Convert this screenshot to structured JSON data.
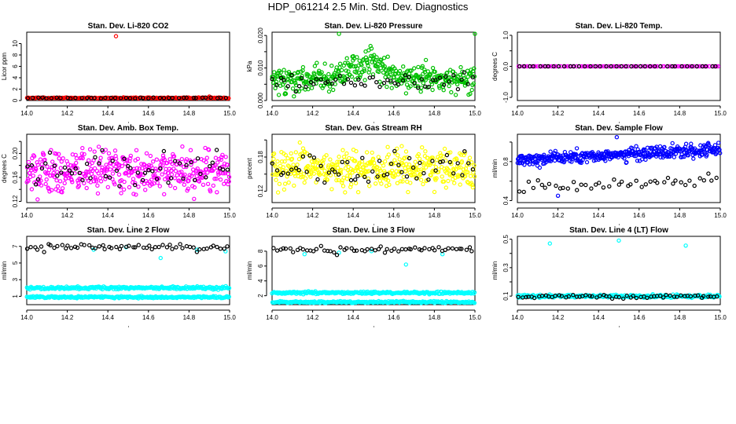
{
  "figure_title": "HDP_061214  2.5 Min. Std. Dev. Diagnostics",
  "chart_data": [
    {
      "type": "scatter",
      "title": "Stan. Dev. Li-820 CO2",
      "ylabel": "Licor ppm",
      "xlim": [
        14.0,
        15.0
      ],
      "ylim": [
        0,
        12
      ],
      "xticks": [
        "14.0",
        "14.2",
        "14.4",
        "14.6",
        "14.8",
        "15.0"
      ],
      "yticks": [
        0,
        2,
        4,
        6,
        8,
        10
      ],
      "ytick_labels": [
        "0",
        "2",
        "4",
        "6",
        "8",
        "10"
      ],
      "series": [
        {
          "name": "primary",
          "color": "#ff0000",
          "gen": {
            "n": 200,
            "base": 0.45,
            "amp": 0.1,
            "trend": 0,
            "seed": 1
          },
          "outliers": [
            [
              14.44,
              11.3
            ],
            [
              14.9,
              0.7
            ]
          ]
        },
        {
          "name": "secondary",
          "color": "#000000",
          "gen": {
            "n": 42,
            "base": 0.45,
            "amp": 0.08,
            "trend": 0,
            "seed": 2
          }
        }
      ]
    },
    {
      "type": "scatter",
      "title": "Stan. Dev. Li-820 Pressure",
      "ylabel": "kPa",
      "xlim": [
        14.0,
        15.0
      ],
      "ylim": [
        0,
        0.021
      ],
      "xticks": [
        "14.0",
        "14.2",
        "14.4",
        "14.6",
        "14.8",
        "15.0"
      ],
      "yticks": [
        0,
        0.005,
        0.01,
        0.015,
        0.02
      ],
      "ytick_labels": [
        "0.000",
        "",
        "0.010",
        "",
        "0.020"
      ],
      "series": [
        {
          "name": "primary",
          "color": "#00c000",
          "gen": {
            "n": 400,
            "base": 0.0065,
            "amp": 0.0045,
            "bump": {
              "center": 14.47,
              "width": 0.12,
              "height": 0.005
            },
            "seed": 3
          },
          "outliers": [
            [
              14.33,
              0.0205
            ],
            [
              15.0,
              0.0205
            ]
          ]
        },
        {
          "name": "secondary",
          "color": "#000000",
          "gen": {
            "n": 55,
            "base": 0.006,
            "amp": 0.003,
            "seed": 4
          }
        }
      ]
    },
    {
      "type": "scatter",
      "title": "Stan. Dev. Li-820 Temp.",
      "ylabel": "degrees C",
      "xlim": [
        14.0,
        15.0
      ],
      "ylim": [
        -1.1,
        1.1
      ],
      "xticks": [
        "14.0",
        "14.2",
        "14.4",
        "14.6",
        "14.8",
        "15.0"
      ],
      "yticks": [
        -1,
        -0.5,
        0,
        0.5,
        1
      ],
      "ytick_labels": [
        "-1.0",
        "",
        "0.0",
        "",
        "1.0"
      ],
      "series": [
        {
          "name": "primary",
          "color": "#ff00ff",
          "gen": {
            "n": 90,
            "base": 0,
            "amp": 0,
            "seed": 5
          }
        },
        {
          "name": "secondary",
          "color": "#000000",
          "gen": {
            "n": 40,
            "base": 0,
            "amp": 0,
            "seed": 6
          }
        }
      ]
    },
    {
      "type": "scatter",
      "title": "Stan. Dev. Amb. Box Temp.",
      "ylabel": "degrees C",
      "xlim": [
        14.0,
        15.0
      ],
      "ylim": [
        0.118,
        0.232
      ],
      "xticks": [
        "14.0",
        "14.2",
        "14.4",
        "14.6",
        "14.8",
        "15.0"
      ],
      "yticks": [
        0.12,
        0.14,
        0.16,
        0.18,
        0.2,
        0.22
      ],
      "ytick_labels": [
        "0.12",
        "",
        "0.16",
        "",
        "0.20",
        ""
      ],
      "series": [
        {
          "name": "primary",
          "color": "#ff00ff",
          "gen": {
            "n": 420,
            "base": 0.172,
            "amp": 0.036,
            "seed": 7
          }
        },
        {
          "name": "secondary",
          "color": "#000000",
          "gen": {
            "n": 55,
            "base": 0.17,
            "amp": 0.032,
            "seed": 8
          }
        }
      ]
    },
    {
      "type": "scatter",
      "title": "Stan. Dev. Gas Stream RH",
      "ylabel": "percent",
      "xlim": [
        14.0,
        15.0
      ],
      "ylim": [
        0.1,
        0.22
      ],
      "xticks": [
        "14.0",
        "14.2",
        "14.4",
        "14.6",
        "14.8",
        "15.0"
      ],
      "yticks": [
        0.12,
        0.15,
        0.18,
        0.21
      ],
      "ytick_labels": [
        "0.12",
        "",
        "0.18",
        ""
      ],
      "series": [
        {
          "name": "primary",
          "color": "#ffff00",
          "gen": {
            "n": 420,
            "base": 0.16,
            "amp": 0.036,
            "seed": 9
          }
        },
        {
          "name": "secondary",
          "color": "#000000",
          "gen": {
            "n": 55,
            "base": 0.16,
            "amp": 0.03,
            "seed": 10
          }
        }
      ]
    },
    {
      "type": "scatter",
      "title": "Stan. Dev. Sample Flow",
      "ylabel": "ml/min",
      "xlim": [
        14.0,
        15.0
      ],
      "ylim": [
        0.38,
        1.08
      ],
      "xticks": [
        "14.0",
        "14.2",
        "14.4",
        "14.6",
        "14.8",
        "15.0"
      ],
      "yticks": [
        0.4,
        0.6,
        0.8,
        1.0
      ],
      "ytick_labels": [
        "0.4",
        "",
        "0.8",
        ""
      ],
      "series": [
        {
          "name": "primary",
          "color": "#0000ff",
          "gen": {
            "n": 420,
            "base": 0.82,
            "amp": 0.07,
            "trend": 0.1,
            "seed": 11
          },
          "outliers": [
            [
              14.49,
              1.05
            ],
            [
              14.2,
              0.45
            ]
          ]
        },
        {
          "name": "secondary",
          "color": "#000000",
          "gen": {
            "n": 45,
            "base": 0.53,
            "amp": 0.08,
            "trend": 0.1,
            "seed": 12
          }
        }
      ]
    },
    {
      "type": "scatter",
      "title": "Stan. Dev. Line 2 Flow",
      "ylabel": "ml/min",
      "xlim": [
        14.0,
        15.0
      ],
      "ylim": [
        0,
        8.2
      ],
      "xticks": [
        "14.0",
        "14.2",
        "14.4",
        "14.6",
        "14.8",
        "15.0"
      ],
      "yticks": [
        1,
        3,
        5,
        7
      ],
      "ytick_labels": [
        "1",
        "3",
        "5",
        "7"
      ],
      "series": [
        {
          "name": "primary",
          "color": "#00ffff",
          "gen": {
            "n": 260,
            "base": 2.0,
            "amp": 0.18,
            "seed": 13
          }
        },
        {
          "name": "primary-low",
          "color": "#00ffff",
          "gen": {
            "n": 260,
            "base": 0.9,
            "amp": 0.12,
            "seed": 14
          },
          "outliers": [
            [
              14.33,
              6.6
            ],
            [
              14.49,
              6.9
            ],
            [
              14.66,
              5.6
            ],
            [
              14.84,
              6.6
            ],
            [
              14.98,
              6.4
            ]
          ]
        },
        {
          "name": "secondary",
          "color": "#000000",
          "gen": {
            "n": 60,
            "base": 6.9,
            "amp": 0.45,
            "seed": 15
          }
        }
      ]
    },
    {
      "type": "scatter",
      "title": "Stan. Dev. Line 3 Flow",
      "ylabel": "ml/min",
      "xlim": [
        14.0,
        15.0
      ],
      "ylim": [
        0.8,
        10
      ],
      "xticks": [
        "14.0",
        "14.2",
        "14.4",
        "14.6",
        "14.8",
        "15.0"
      ],
      "yticks": [
        2,
        4,
        6,
        8
      ],
      "ytick_labels": [
        "2",
        "4",
        "6",
        "8"
      ],
      "series": [
        {
          "name": "primary",
          "color": "#00ffff",
          "gen": {
            "n": 260,
            "base": 2.4,
            "amp": 0.18,
            "seed": 16
          }
        },
        {
          "name": "primary-low",
          "color": "#00ffff",
          "gen": {
            "n": 260,
            "base": 1.15,
            "amp": 0.12,
            "seed": 17
          },
          "outliers": [
            [
              14.16,
              7.6
            ],
            [
              14.33,
              7.8
            ],
            [
              14.49,
              8.0
            ],
            [
              14.66,
              6.2
            ],
            [
              14.84,
              7.6
            ]
          ]
        },
        {
          "name": "secondary",
          "color": "#000000",
          "gen": {
            "n": 60,
            "base": 8.2,
            "amp": 0.5,
            "seed": 18
          }
        }
      ]
    },
    {
      "type": "scatter",
      "title": "Stan. Dev. Line 4 (LT) Flow",
      "ylabel": "ml/min",
      "xlim": [
        14.0,
        15.0
      ],
      "ylim": [
        0.04,
        0.52
      ],
      "xticks": [
        "14.0",
        "14.2",
        "14.4",
        "14.6",
        "14.8",
        "15.0"
      ],
      "yticks": [
        0.1,
        0.2,
        0.3,
        0.4,
        0.5
      ],
      "ytick_labels": [
        "0.1",
        "",
        "0.3",
        "",
        "0.5"
      ],
      "series": [
        {
          "name": "primary",
          "color": "#00ffff",
          "gen": {
            "n": 260,
            "base": 0.1,
            "amp": 0.012,
            "seed": 19
          },
          "outliers": [
            [
              14.16,
              0.47
            ],
            [
              14.5,
              0.49
            ],
            [
              14.83,
              0.455
            ]
          ]
        },
        {
          "name": "secondary",
          "color": "#000000",
          "gen": {
            "n": 60,
            "base": 0.098,
            "amp": 0.012,
            "seed": 20
          }
        }
      ]
    }
  ]
}
